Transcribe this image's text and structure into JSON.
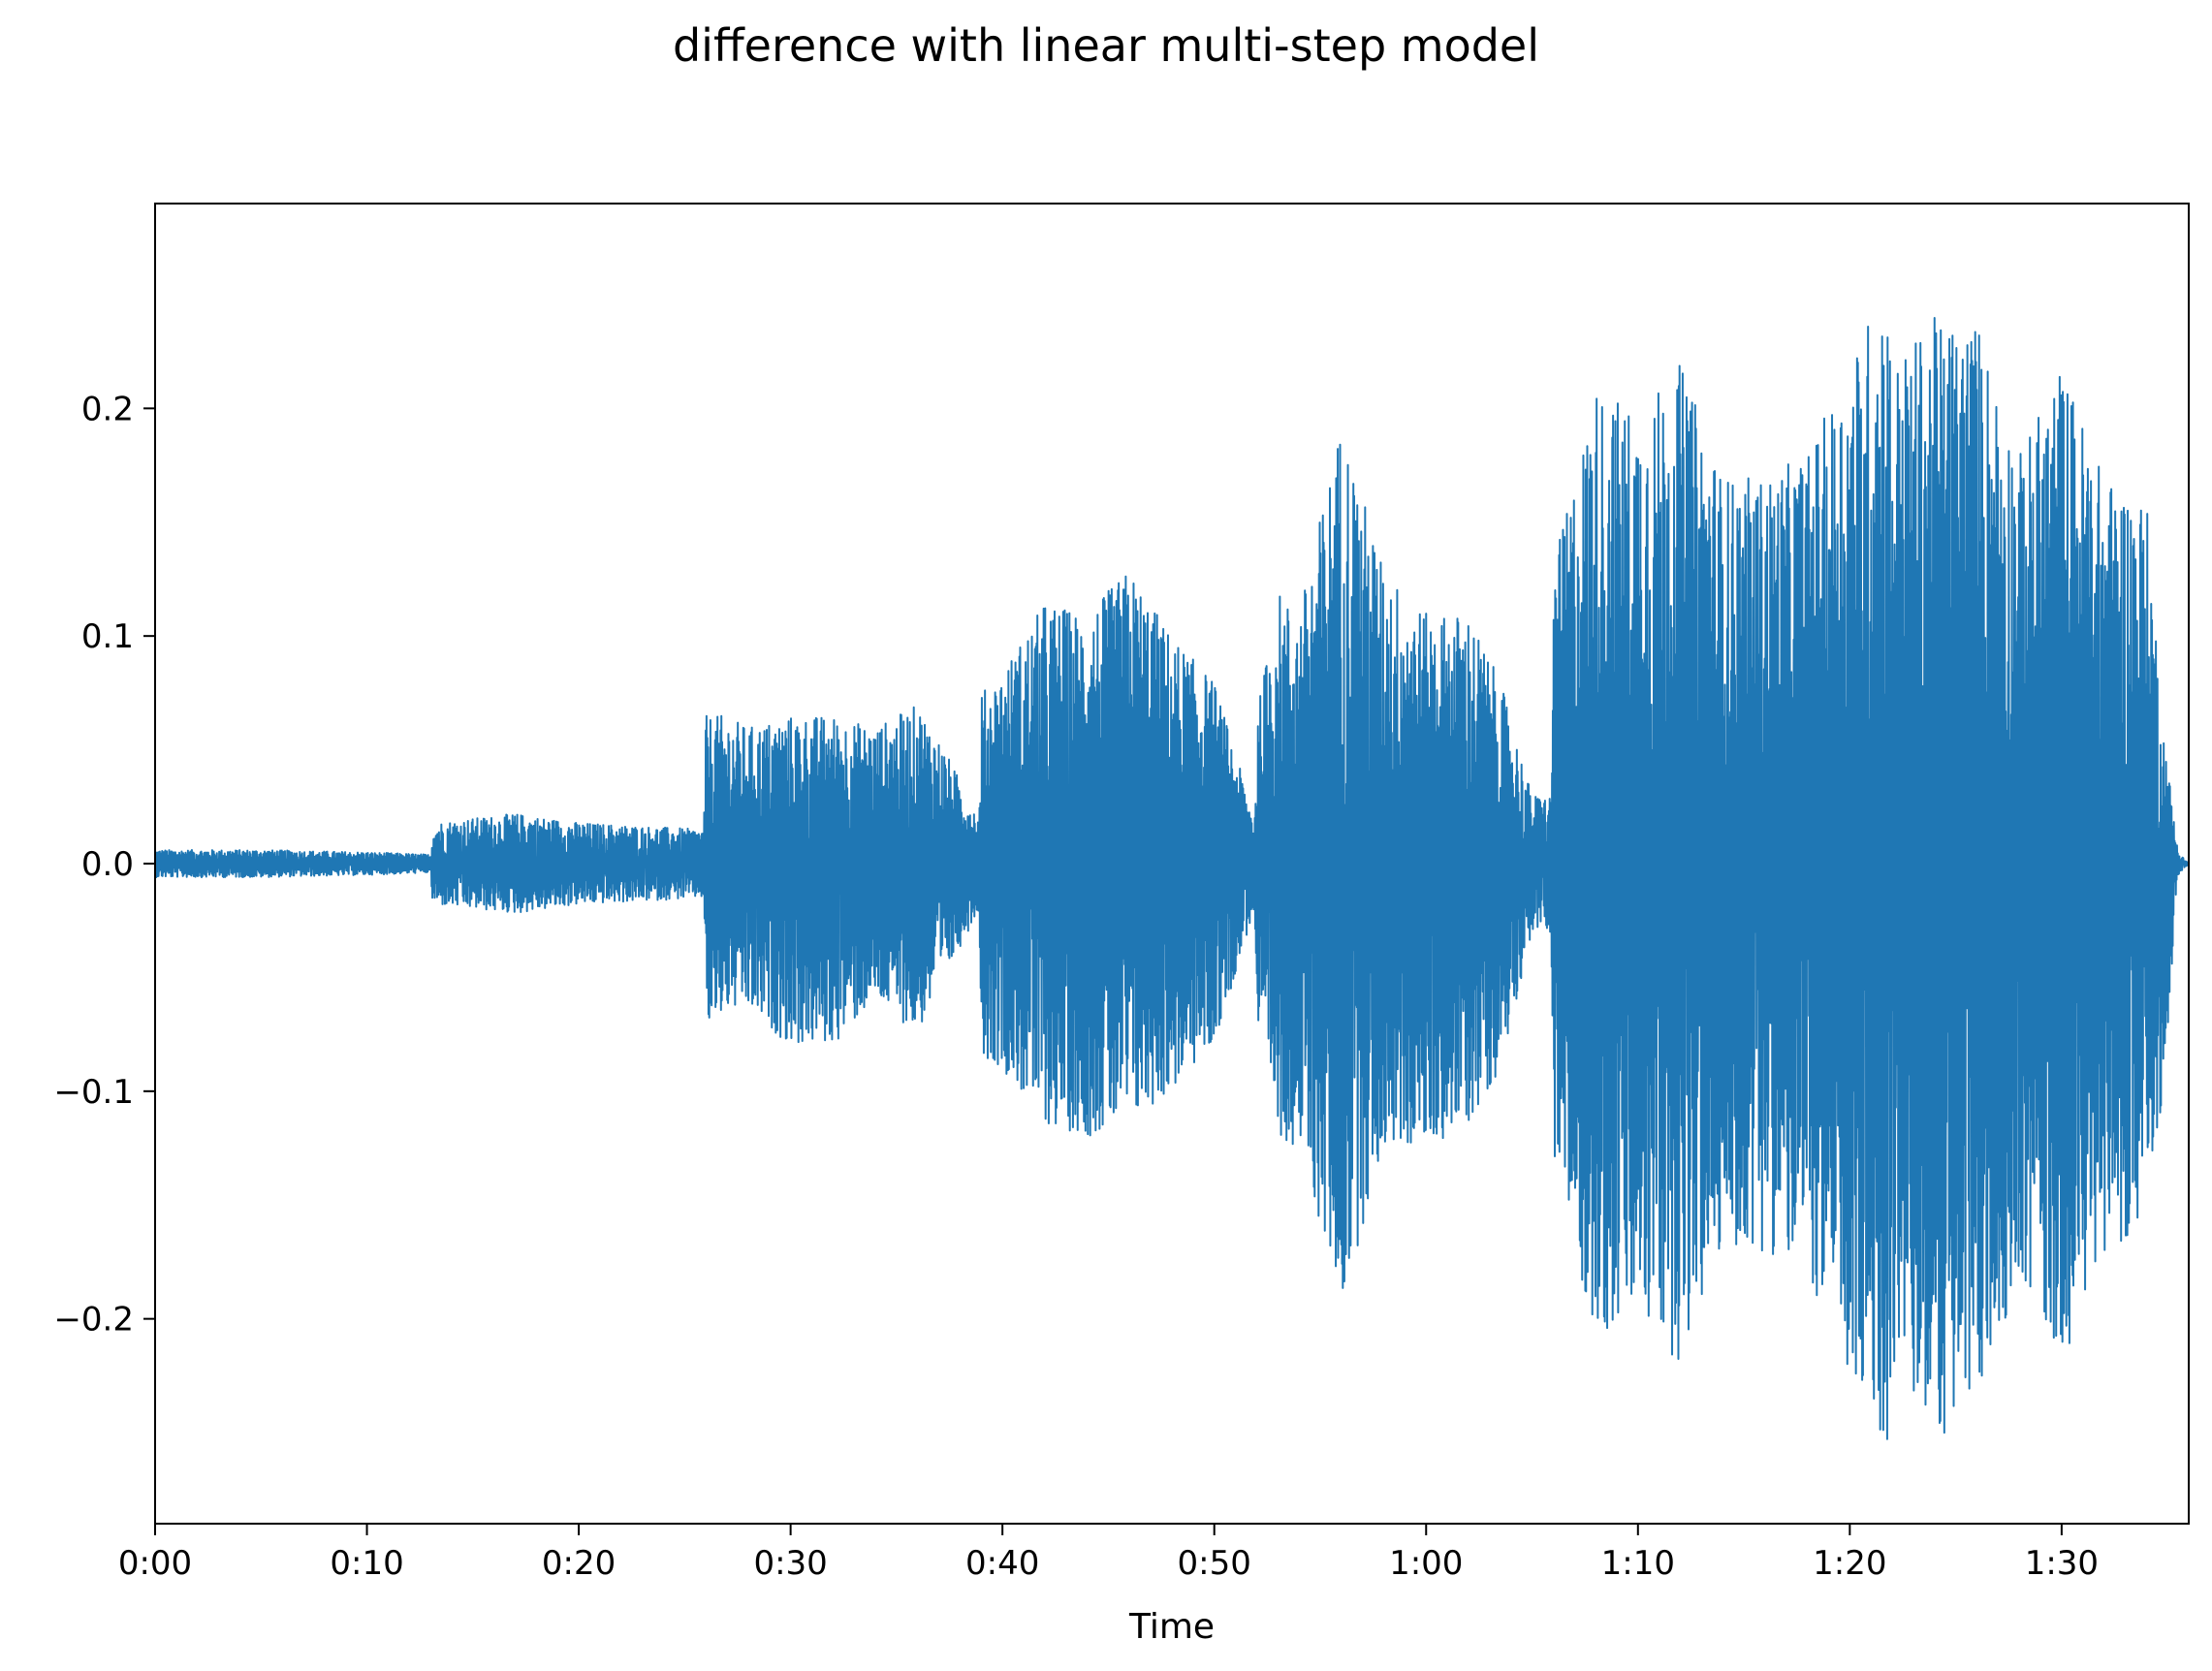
{
  "chart_data": {
    "type": "line",
    "title": "difference with linear multi-step model",
    "xlabel": "Time",
    "ylabel": "",
    "xlim": [
      0,
      96
    ],
    "ylim": [
      -0.29,
      0.29
    ],
    "x_ticks": [
      0,
      10,
      20,
      30,
      40,
      50,
      60,
      70,
      80,
      90
    ],
    "x_tick_labels": [
      "0:00",
      "0:10",
      "0:20",
      "0:30",
      "0:40",
      "0:50",
      "1:00",
      "1:10",
      "1:20",
      "1:30"
    ],
    "y_ticks": [
      -0.2,
      -0.1,
      0.0,
      0.1,
      0.2
    ],
    "y_tick_labels": [
      "−0.2",
      "−0.1",
      "0.0",
      "0.1",
      "0.2"
    ],
    "grid": false,
    "series": [
      {
        "color": "#1f77b4",
        "envelope": {
          "x": [
            0,
            5,
            10,
            13,
            13.1,
            17,
            20,
            25.9,
            26,
            27,
            28,
            30,
            32,
            34,
            36,
            37,
            38.9,
            39,
            40,
            42,
            44,
            46,
            48,
            50,
            51.9,
            52,
            53,
            54,
            56,
            58,
            60,
            62,
            63.5,
            65,
            65.9,
            66,
            68,
            70,
            72,
            74,
            76,
            78,
            80,
            81.7,
            82,
            84,
            86,
            88,
            90,
            92,
            94,
            94.8,
            95.5,
            96
          ],
          "max": [
            0.006,
            0.006,
            0.005,
            0.004,
            0.018,
            0.022,
            0.018,
            0.015,
            0.065,
            0.065,
            0.06,
            0.065,
            0.065,
            0.06,
            0.07,
            0.055,
            0.02,
            0.075,
            0.085,
            0.115,
            0.11,
            0.13,
            0.1,
            0.08,
            0.02,
            0.065,
            0.12,
            0.11,
            0.195,
            0.13,
            0.11,
            0.11,
            0.08,
            0.03,
            0.03,
            0.13,
            0.21,
            0.2,
            0.22,
            0.17,
            0.17,
            0.18,
            0.22,
            0.26,
            0.22,
            0.24,
            0.24,
            0.18,
            0.22,
            0.17,
            0.16,
            0.06,
            0.005,
            0.0
          ],
          "min": [
            -0.006,
            -0.006,
            -0.005,
            -0.004,
            -0.018,
            -0.022,
            -0.018,
            -0.015,
            -0.075,
            -0.065,
            -0.065,
            -0.08,
            -0.08,
            -0.06,
            -0.075,
            -0.055,
            -0.02,
            -0.085,
            -0.09,
            -0.115,
            -0.12,
            -0.115,
            -0.1,
            -0.08,
            -0.02,
            -0.075,
            -0.12,
            -0.125,
            -0.195,
            -0.125,
            -0.125,
            -0.115,
            -0.09,
            -0.03,
            -0.03,
            -0.13,
            -0.21,
            -0.2,
            -0.22,
            -0.17,
            -0.17,
            -0.18,
            -0.23,
            -0.265,
            -0.22,
            -0.255,
            -0.24,
            -0.18,
            -0.22,
            -0.17,
            -0.16,
            -0.1,
            -0.005,
            0.0
          ]
        }
      }
    ]
  }
}
